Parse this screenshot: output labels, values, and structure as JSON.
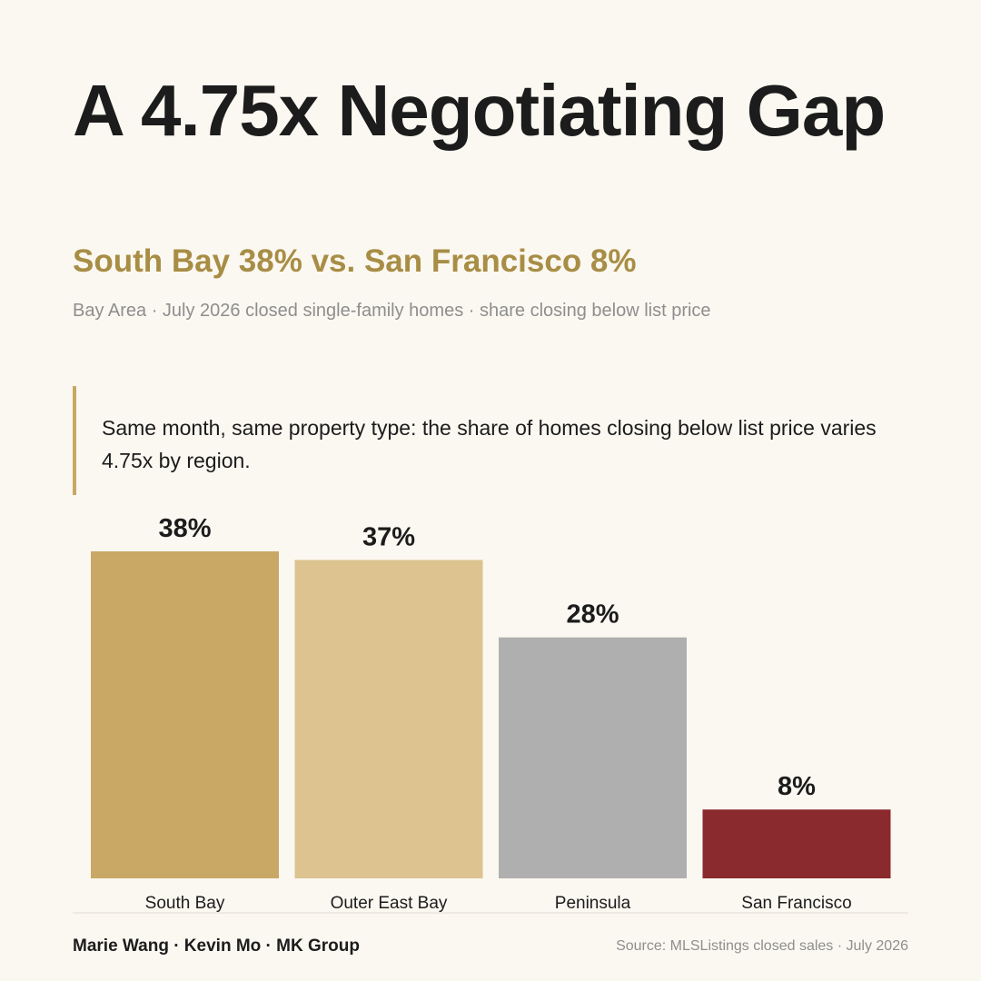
{
  "header": {
    "title": "A 4.75x Negotiating Gap",
    "subtitle": "South Bay 38% vs. San Francisco 8%",
    "meta": "Bay Area · July 2026 closed single-family homes · share closing below list price"
  },
  "callout": {
    "text": "Same month, same property type: the share of homes closing below list price varies 4.75x by region."
  },
  "chart_data": {
    "type": "bar",
    "categories": [
      "South Bay",
      "Outer East Bay",
      "Peninsula",
      "San Francisco"
    ],
    "values": [
      38,
      37,
      28,
      8
    ],
    "value_labels": [
      "38%",
      "37%",
      "28%",
      "8%"
    ],
    "colors": [
      "#c9a865",
      "#dcc390",
      "#afafaf",
      "#8b2a2e"
    ],
    "ylim": [
      0,
      38
    ],
    "grid": false,
    "title": "",
    "xlabel": "",
    "ylabel": ""
  },
  "footer": {
    "credits": "Marie Wang · Kevin Mo · MK Group",
    "source": "Source: MLSListings closed sales · July 2026"
  }
}
